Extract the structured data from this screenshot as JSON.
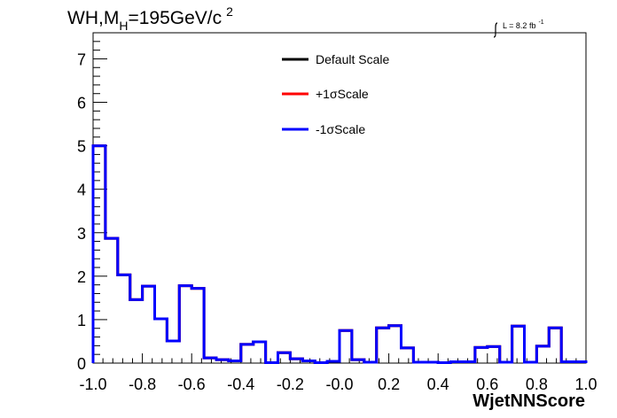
{
  "chart_data": {
    "type": "line",
    "title_main": "WH,M",
    "title_sub": "H",
    "title_rest": "=195GeV/c",
    "title_sup": "2",
    "lumi_main": "L = 8.2 fb",
    "lumi_sup": "-1",
    "xlabel": "WjetNNScore",
    "xlim": [
      -1.0,
      1.0
    ],
    "ylim": [
      0,
      7.6
    ],
    "x_ticks": [
      "-1.0",
      "-0.8",
      "-0.6",
      "-0.4",
      "-0.2",
      "-0.0",
      "0.2",
      "0.4",
      "0.6",
      "0.8",
      "1.0"
    ],
    "y_ticks": [
      "0",
      "1",
      "2",
      "3",
      "4",
      "5",
      "6",
      "7"
    ],
    "bin_edges": [
      -1.0,
      -0.95,
      -0.9,
      -0.85,
      -0.8,
      -0.75,
      -0.7,
      -0.65,
      -0.6,
      -0.55,
      -0.5,
      -0.45,
      -0.4,
      -0.35,
      -0.3,
      -0.25,
      -0.2,
      -0.15,
      -0.1,
      -0.05,
      0.0,
      0.05,
      0.1,
      0.15,
      0.2,
      0.25,
      0.3,
      0.35,
      0.4,
      0.45,
      0.5,
      0.55,
      0.6,
      0.65,
      0.7,
      0.75,
      0.8,
      0.85,
      0.9,
      0.95,
      1.0
    ],
    "series": [
      {
        "name": "Default Scale",
        "color": "#000000",
        "values": [
          5.0,
          2.87,
          2.03,
          1.46,
          1.77,
          1.02,
          0.51,
          1.78,
          1.72,
          0.12,
          0.08,
          0.05,
          0.43,
          0.49,
          0.01,
          0.24,
          0.1,
          0.05,
          0.01,
          0.04,
          0.75,
          0.08,
          0.02,
          0.81,
          0.86,
          0.35,
          0.02,
          0.02,
          0.01,
          0.03,
          0.03,
          0.36,
          0.38,
          0.02,
          0.85,
          0.02,
          0.39,
          0.81,
          0.03,
          0.03
        ]
      },
      {
        "name": "+1σScale",
        "color": "#ff0000",
        "values": [
          5.0,
          2.87,
          2.03,
          1.46,
          1.77,
          1.02,
          0.51,
          1.78,
          1.72,
          0.12,
          0.08,
          0.05,
          0.43,
          0.49,
          0.01,
          0.24,
          0.1,
          0.05,
          0.01,
          0.04,
          0.75,
          0.08,
          0.02,
          0.81,
          0.86,
          0.35,
          0.02,
          0.02,
          0.01,
          0.03,
          0.03,
          0.36,
          0.38,
          0.02,
          0.85,
          0.02,
          0.39,
          0.81,
          0.03,
          0.03
        ]
      },
      {
        "name": "-1σScale",
        "color": "#0000ff",
        "values": [
          5.0,
          2.87,
          2.03,
          1.46,
          1.77,
          1.02,
          0.51,
          1.78,
          1.72,
          0.12,
          0.08,
          0.05,
          0.43,
          0.49,
          0.01,
          0.24,
          0.1,
          0.05,
          0.01,
          0.04,
          0.75,
          0.08,
          0.02,
          0.81,
          0.86,
          0.35,
          0.02,
          0.02,
          0.01,
          0.03,
          0.03,
          0.36,
          0.38,
          0.02,
          0.85,
          0.02,
          0.39,
          0.81,
          0.03,
          0.03
        ]
      }
    ],
    "grid": false,
    "legend_position": "top-center"
  }
}
